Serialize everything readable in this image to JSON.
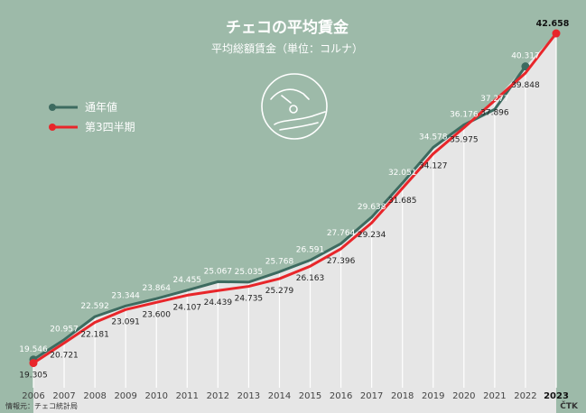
{
  "header": {
    "title": "チェコの平均賃金",
    "subtitle": "平均総額賃金（単位：コルナ）"
  },
  "legend": {
    "items": [
      {
        "label": "通年値",
        "color": "#3d6b60"
      },
      {
        "label": "第3四半期",
        "color": "#e8262a"
      }
    ]
  },
  "chart_data": {
    "type": "line",
    "x": [
      "2006",
      "2007",
      "2008",
      "2009",
      "2010",
      "2011",
      "2012",
      "2013",
      "2014",
      "2015",
      "2016",
      "2017",
      "2018",
      "2019",
      "2020",
      "2021",
      "2022",
      "2023"
    ],
    "series": [
      {
        "name": "通年値",
        "color": "#3d6b60",
        "values": [
          19546,
          20957,
          22592,
          23344,
          23864,
          24455,
          25067,
          25035,
          25768,
          26591,
          27764,
          29638,
          32051,
          34578,
          36176,
          37277,
          40317,
          null
        ],
        "labels": [
          "19.546",
          "20.957",
          "22.592",
          "23.344",
          "23.864",
          "24.455",
          "25.067",
          "25.035",
          "25.768",
          "26.591",
          "27.764",
          "29.638",
          "32.051",
          "34.578",
          "36.176",
          "37.277",
          "40.317",
          ""
        ]
      },
      {
        "name": "第3四半期",
        "color": "#e8262a",
        "values": [
          19305,
          20721,
          22181,
          23091,
          23600,
          24107,
          24439,
          24735,
          25279,
          26163,
          27396,
          29234,
          31685,
          34127,
          35975,
          37896,
          39848,
          42658
        ],
        "labels": [
          "19.305",
          "20.721",
          "22.181",
          "23.091",
          "23.600",
          "24.107",
          "24.439",
          "24.735",
          "25.279",
          "26.163",
          "27.396",
          "29.234",
          "31.685",
          "34.127",
          "35.975",
          "37.896",
          "39.848",
          "42.658"
        ]
      }
    ],
    "ylim": [
      18000,
      44000
    ],
    "legend_position": "top-left",
    "colors": {
      "background_green": "#9dbaa9",
      "grey_fill": "#e6e6e6",
      "stem": "#ffffff"
    }
  },
  "footer": {
    "source": "情報元：チェコ統計局",
    "brand": "ČTK"
  }
}
